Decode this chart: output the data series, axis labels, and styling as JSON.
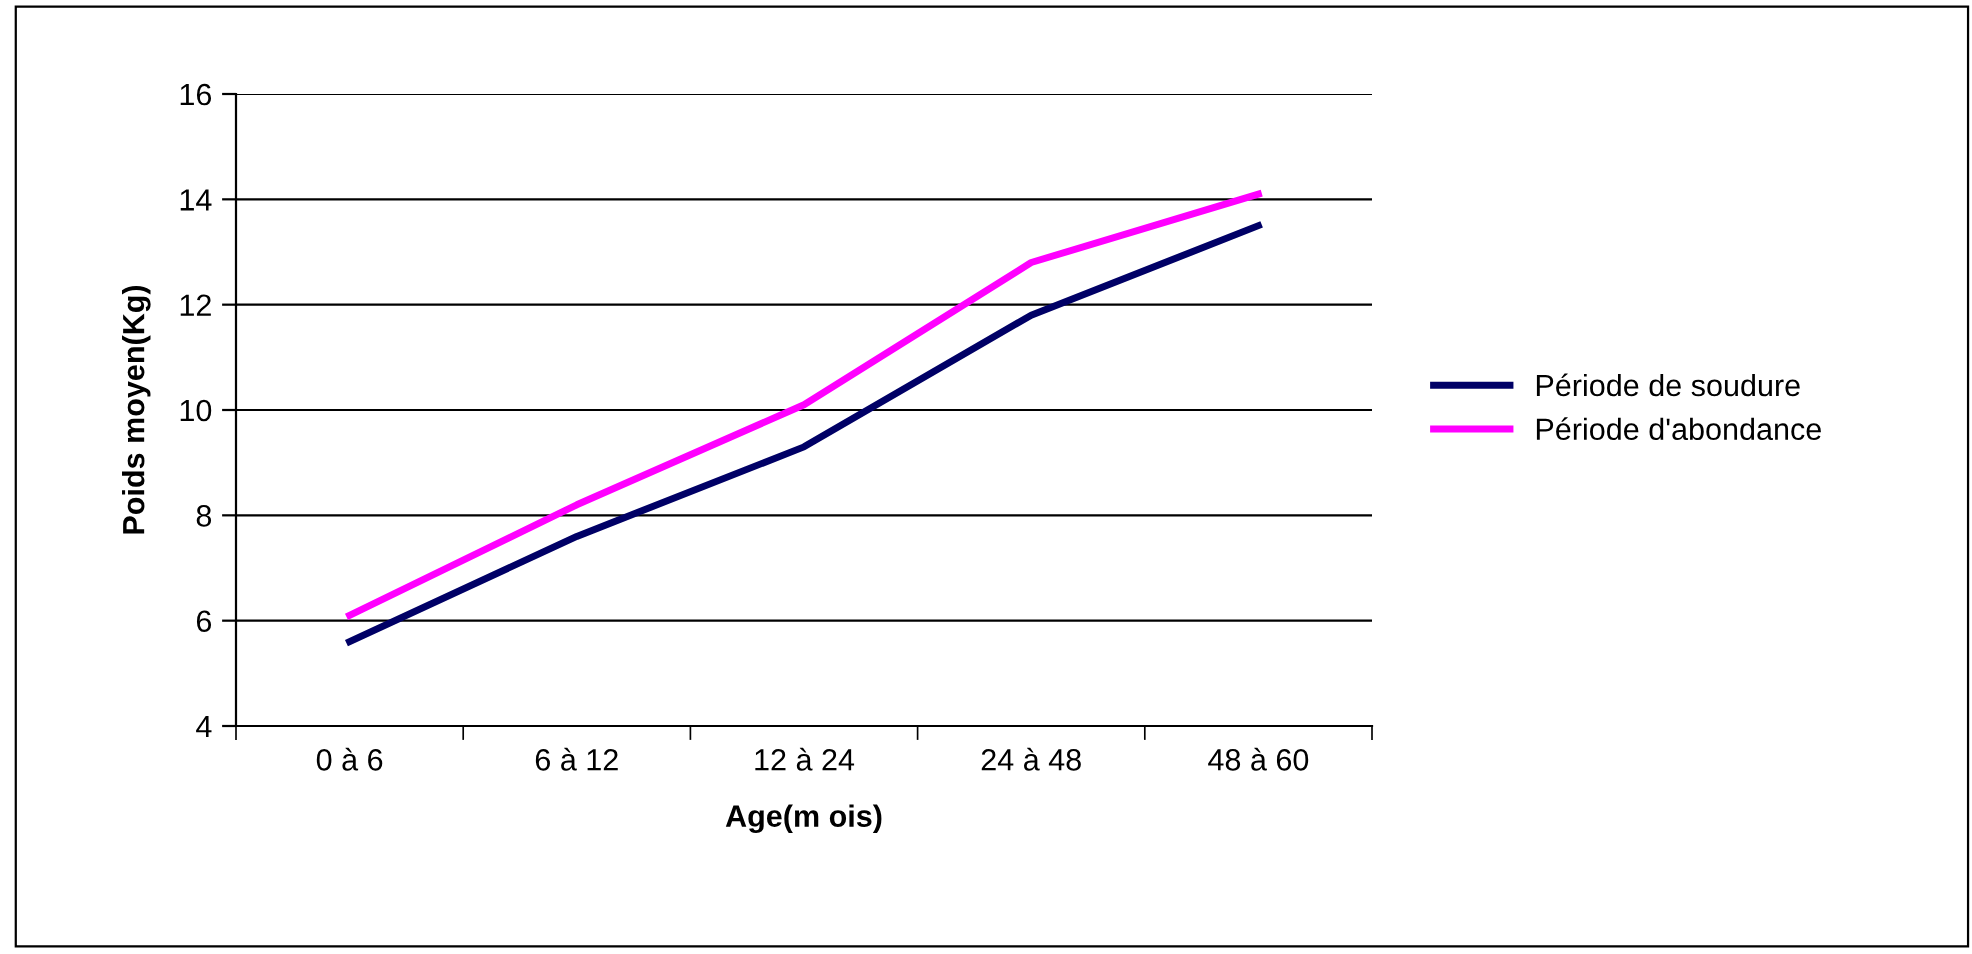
{
  "chart_data": {
    "type": "line",
    "xlabel": "Age(m ois)",
    "ylabel": "Poids moyen(Kg)",
    "categories": [
      "0 à 6",
      "6 à 12",
      "12 à 24",
      "24 à 48",
      "48 à 60"
    ],
    "series": [
      {
        "name": "Période de soudure",
        "color": "#000066",
        "values": [
          5.6,
          7.6,
          9.3,
          11.8,
          13.5
        ]
      },
      {
        "name": "Période d'abondance",
        "color": "#ff00ff",
        "values": [
          6.1,
          8.2,
          10.1,
          12.8,
          14.1
        ]
      }
    ],
    "ylim": [
      4,
      16
    ],
    "yticks": [
      4,
      6,
      8,
      10,
      12,
      14,
      16
    ],
    "grid": "y",
    "legend": "right",
    "marker": "none",
    "line_style": "solid"
  }
}
